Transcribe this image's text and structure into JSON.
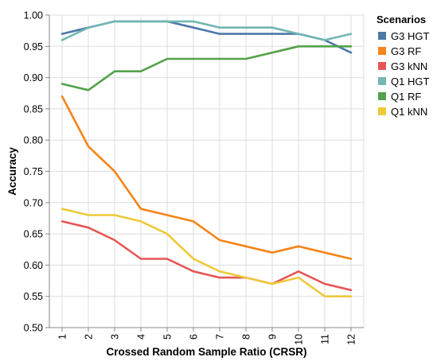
{
  "chart_data": {
    "type": "line",
    "xlabel": "Crossed Random Sample Ratio (CRSR)",
    "ylabel": "Accuracy",
    "x": [
      1,
      2,
      3,
      4,
      5,
      6,
      7,
      8,
      9,
      10,
      11,
      12
    ],
    "x_tick_labels": [
      "1",
      "2",
      "3",
      "4",
      "5",
      "6",
      "7",
      "8",
      "9",
      "10",
      "11",
      "12"
    ],
    "ylim": [
      0.5,
      1.0
    ],
    "y_tick_labels": [
      "0.50",
      "0.55",
      "0.60",
      "0.65",
      "0.70",
      "0.75",
      "0.80",
      "0.85",
      "0.90",
      "0.95",
      "1.00"
    ],
    "grid": true,
    "legend_title": "Scenarios",
    "legend_position": "right",
    "series": [
      {
        "name": "G3 HGT",
        "color": "#4c78a8",
        "values": [
          0.97,
          0.98,
          0.99,
          0.99,
          0.99,
          0.98,
          0.97,
          0.97,
          0.97,
          0.97,
          0.96,
          0.94
        ]
      },
      {
        "name": "G3 RF",
        "color": "#f58518",
        "values": [
          0.87,
          0.79,
          0.75,
          0.69,
          0.68,
          0.67,
          0.64,
          0.63,
          0.62,
          0.63,
          0.62,
          0.61
        ]
      },
      {
        "name": "G3 kNN",
        "color": "#e45756",
        "values": [
          0.67,
          0.66,
          0.64,
          0.61,
          0.61,
          0.59,
          0.58,
          0.58,
          0.57,
          0.59,
          0.57,
          0.56
        ]
      },
      {
        "name": "Q1 HGT",
        "color": "#72b7b2",
        "values": [
          0.96,
          0.98,
          0.99,
          0.99,
          0.99,
          0.99,
          0.98,
          0.98,
          0.98,
          0.97,
          0.96,
          0.97
        ]
      },
      {
        "name": "Q1 RF",
        "color": "#54a24b",
        "values": [
          0.89,
          0.88,
          0.91,
          0.91,
          0.93,
          0.93,
          0.93,
          0.93,
          0.94,
          0.95,
          0.95,
          0.95
        ]
      },
      {
        "name": "Q1 kNN",
        "color": "#eeca3b",
        "values": [
          0.69,
          0.68,
          0.68,
          0.67,
          0.65,
          0.61,
          0.59,
          0.58,
          0.57,
          0.58,
          0.55,
          0.55
        ]
      }
    ]
  }
}
